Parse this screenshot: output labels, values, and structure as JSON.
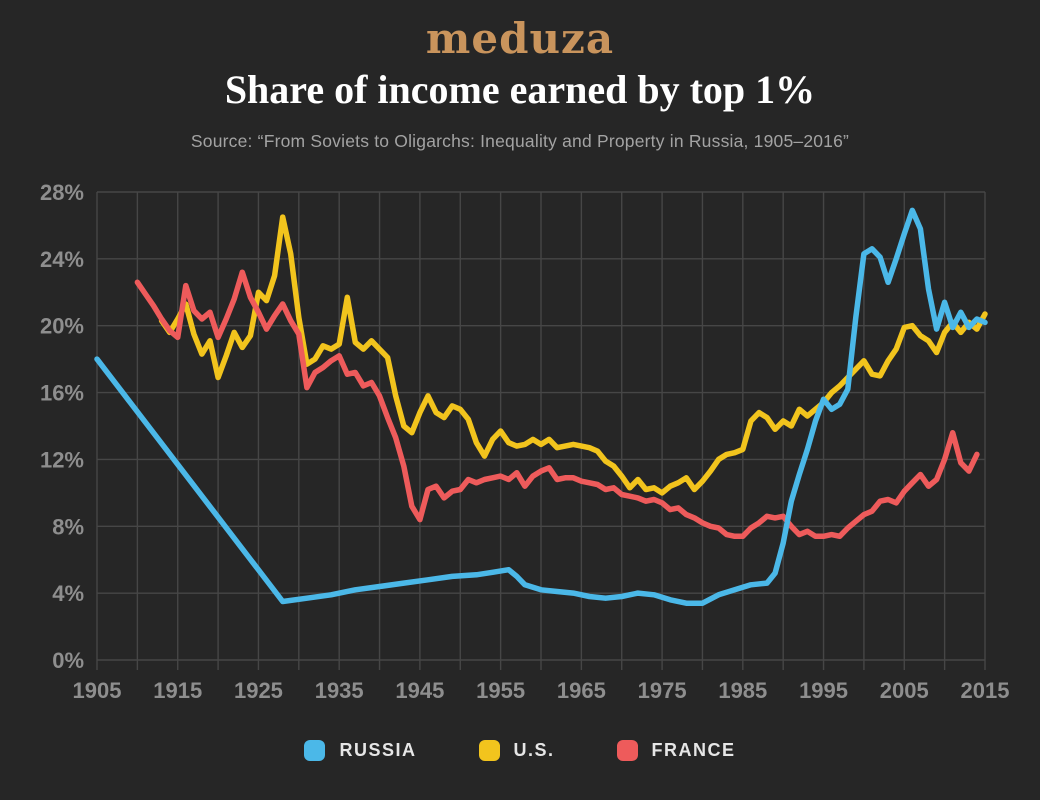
{
  "logo": {
    "text": "meduza",
    "color": "#c9945c"
  },
  "header": {
    "title": "Share of income earned by top 1%",
    "source": "Source: “From Soviets to Oligarchs: Inequality and Property in Russia, 1905–2016”"
  },
  "colors": {
    "background": "#262626",
    "grid": "#464646",
    "axis_text": "#8e8e8e",
    "title": "#ffffff",
    "source": "#a3a3a3"
  },
  "legend": {
    "items": [
      {
        "label": "RUSSIA",
        "color": "#4bb8e8"
      },
      {
        "label": "U.S.",
        "color": "#f2c41d"
      },
      {
        "label": "FRANCE",
        "color": "#ee5b5b"
      }
    ]
  },
  "chart_data": {
    "type": "line",
    "title": "Share of income earned by top 1%",
    "xlabel": "",
    "ylabel": "",
    "x_axis": {
      "min": 1905,
      "max": 2015,
      "grid_interval": 5,
      "label_interval": 10,
      "tick_labels": [
        "1905",
        "1915",
        "1925",
        "1935",
        "1945",
        "1955",
        "1965",
        "1975",
        "1985",
        "1995",
        "2005",
        "2015"
      ]
    },
    "y_axis": {
      "min": 0,
      "max": 28,
      "tick_interval": 4,
      "unit": "%",
      "tick_labels": [
        "0%",
        "4%",
        "8%",
        "12%",
        "16%",
        "20%",
        "24%",
        "28%"
      ]
    },
    "grid": true,
    "legend_position": "bottom",
    "draw_order": [
      1,
      2,
      0
    ],
    "series": [
      {
        "name": "RUSSIA",
        "color": "#4bb8e8",
        "points": [
          [
            1905,
            18.0
          ],
          [
            1928,
            3.5
          ],
          [
            1931,
            3.7
          ],
          [
            1934,
            3.9
          ],
          [
            1937,
            4.2
          ],
          [
            1940,
            4.4
          ],
          [
            1943,
            4.6
          ],
          [
            1946,
            4.8
          ],
          [
            1949,
            5.0
          ],
          [
            1952,
            5.1
          ],
          [
            1954,
            5.25
          ],
          [
            1956,
            5.4
          ],
          [
            1957,
            5.0
          ],
          [
            1958,
            4.5
          ],
          [
            1960,
            4.2
          ],
          [
            1962,
            4.1
          ],
          [
            1964,
            4.0
          ],
          [
            1966,
            3.8
          ],
          [
            1968,
            3.7
          ],
          [
            1970,
            3.8
          ],
          [
            1972,
            4.0
          ],
          [
            1974,
            3.9
          ],
          [
            1976,
            3.6
          ],
          [
            1978,
            3.4
          ],
          [
            1980,
            3.4
          ],
          [
            1982,
            3.9
          ],
          [
            1984,
            4.2
          ],
          [
            1986,
            4.5
          ],
          [
            1988,
            4.6
          ],
          [
            1989,
            5.2
          ],
          [
            1990,
            7.0
          ],
          [
            1991,
            9.5
          ],
          [
            1992,
            11.1
          ],
          [
            1993,
            12.6
          ],
          [
            1994,
            14.3
          ],
          [
            1995,
            15.6
          ],
          [
            1996,
            15.0
          ],
          [
            1997,
            15.3
          ],
          [
            1998,
            16.2
          ],
          [
            1999,
            20.5
          ],
          [
            2000,
            24.3
          ],
          [
            2001,
            24.6
          ],
          [
            2002,
            24.1
          ],
          [
            2003,
            22.6
          ],
          [
            2004,
            24.0
          ],
          [
            2005,
            25.5
          ],
          [
            2006,
            26.9
          ],
          [
            2007,
            25.8
          ],
          [
            2008,
            22.2
          ],
          [
            2009,
            19.8
          ],
          [
            2010,
            21.4
          ],
          [
            2011,
            19.9
          ],
          [
            2012,
            20.8
          ],
          [
            2013,
            19.9
          ],
          [
            2014,
            20.4
          ],
          [
            2015,
            20.2
          ]
        ]
      },
      {
        "name": "U.S.",
        "color": "#f2c41d",
        "points": [
          [
            1913,
            20.3
          ],
          [
            1914,
            19.6
          ],
          [
            1915,
            20.4
          ],
          [
            1916,
            21.3
          ],
          [
            1917,
            19.5
          ],
          [
            1918,
            18.3
          ],
          [
            1919,
            19.1
          ],
          [
            1920,
            16.9
          ],
          [
            1921,
            18.2
          ],
          [
            1922,
            19.6
          ],
          [
            1923,
            18.7
          ],
          [
            1924,
            19.4
          ],
          [
            1925,
            22.0
          ],
          [
            1926,
            21.5
          ],
          [
            1927,
            23.0
          ],
          [
            1928,
            26.5
          ],
          [
            1929,
            24.3
          ],
          [
            1930,
            20.5
          ],
          [
            1931,
            17.7
          ],
          [
            1932,
            18.0
          ],
          [
            1933,
            18.8
          ],
          [
            1934,
            18.6
          ],
          [
            1935,
            18.9
          ],
          [
            1936,
            21.7
          ],
          [
            1937,
            19.0
          ],
          [
            1938,
            18.6
          ],
          [
            1939,
            19.1
          ],
          [
            1940,
            18.6
          ],
          [
            1941,
            18.1
          ],
          [
            1942,
            15.8
          ],
          [
            1943,
            14.0
          ],
          [
            1944,
            13.6
          ],
          [
            1945,
            14.8
          ],
          [
            1946,
            15.8
          ],
          [
            1947,
            14.8
          ],
          [
            1948,
            14.5
          ],
          [
            1949,
            15.2
          ],
          [
            1950,
            15.0
          ],
          [
            1951,
            14.4
          ],
          [
            1952,
            13.0
          ],
          [
            1953,
            12.2
          ],
          [
            1954,
            13.2
          ],
          [
            1955,
            13.7
          ],
          [
            1956,
            13.0
          ],
          [
            1957,
            12.8
          ],
          [
            1958,
            12.9
          ],
          [
            1959,
            13.2
          ],
          [
            1960,
            12.9
          ],
          [
            1961,
            13.2
          ],
          [
            1962,
            12.7
          ],
          [
            1963,
            12.8
          ],
          [
            1964,
            12.9
          ],
          [
            1965,
            12.8
          ],
          [
            1966,
            12.7
          ],
          [
            1967,
            12.5
          ],
          [
            1968,
            11.9
          ],
          [
            1969,
            11.6
          ],
          [
            1970,
            11.0
          ],
          [
            1971,
            10.3
          ],
          [
            1972,
            10.8
          ],
          [
            1973,
            10.2
          ],
          [
            1974,
            10.3
          ],
          [
            1975,
            10.0
          ],
          [
            1976,
            10.4
          ],
          [
            1977,
            10.6
          ],
          [
            1978,
            10.9
          ],
          [
            1979,
            10.2
          ],
          [
            1980,
            10.7
          ],
          [
            1981,
            11.3
          ],
          [
            1982,
            12.0
          ],
          [
            1983,
            12.3
          ],
          [
            1984,
            12.4
          ],
          [
            1985,
            12.6
          ],
          [
            1986,
            14.3
          ],
          [
            1987,
            14.8
          ],
          [
            1988,
            14.5
          ],
          [
            1989,
            13.8
          ],
          [
            1990,
            14.3
          ],
          [
            1991,
            14.0
          ],
          [
            1992,
            15.0
          ],
          [
            1993,
            14.6
          ],
          [
            1994,
            15.0
          ],
          [
            1995,
            15.4
          ],
          [
            1996,
            16.0
          ],
          [
            1997,
            16.4
          ],
          [
            1998,
            16.9
          ],
          [
            1999,
            17.4
          ],
          [
            2000,
            17.9
          ],
          [
            2001,
            17.1
          ],
          [
            2002,
            17.0
          ],
          [
            2003,
            17.9
          ],
          [
            2004,
            18.6
          ],
          [
            2005,
            19.9
          ],
          [
            2006,
            20.0
          ],
          [
            2007,
            19.4
          ],
          [
            2008,
            19.1
          ],
          [
            2009,
            18.4
          ],
          [
            2010,
            19.6
          ],
          [
            2011,
            20.2
          ],
          [
            2012,
            19.6
          ],
          [
            2013,
            20.2
          ],
          [
            2014,
            19.8
          ],
          [
            2015,
            20.7
          ]
        ]
      },
      {
        "name": "FRANCE",
        "color": "#ee5b5b",
        "points": [
          [
            1910,
            22.6
          ],
          [
            1911,
            21.9
          ],
          [
            1912,
            21.2
          ],
          [
            1913,
            20.4
          ],
          [
            1914,
            19.7
          ],
          [
            1915,
            19.3
          ],
          [
            1916,
            22.4
          ],
          [
            1917,
            20.9
          ],
          [
            1918,
            20.4
          ],
          [
            1919,
            20.8
          ],
          [
            1920,
            19.3
          ],
          [
            1921,
            20.4
          ],
          [
            1922,
            21.6
          ],
          [
            1923,
            23.2
          ],
          [
            1924,
            21.7
          ],
          [
            1925,
            20.8
          ],
          [
            1926,
            19.8
          ],
          [
            1927,
            20.6
          ],
          [
            1928,
            21.3
          ],
          [
            1929,
            20.3
          ],
          [
            1930,
            19.5
          ],
          [
            1931,
            16.3
          ],
          [
            1932,
            17.2
          ],
          [
            1933,
            17.5
          ],
          [
            1934,
            17.9
          ],
          [
            1935,
            18.2
          ],
          [
            1936,
            17.1
          ],
          [
            1937,
            17.2
          ],
          [
            1938,
            16.4
          ],
          [
            1939,
            16.6
          ],
          [
            1940,
            15.8
          ],
          [
            1941,
            14.5
          ],
          [
            1942,
            13.3
          ],
          [
            1943,
            11.6
          ],
          [
            1944,
            9.2
          ],
          [
            1945,
            8.4
          ],
          [
            1946,
            10.2
          ],
          [
            1947,
            10.4
          ],
          [
            1948,
            9.7
          ],
          [
            1949,
            10.1
          ],
          [
            1950,
            10.2
          ],
          [
            1951,
            10.8
          ],
          [
            1952,
            10.6
          ],
          [
            1953,
            10.8
          ],
          [
            1954,
            10.9
          ],
          [
            1955,
            11.0
          ],
          [
            1956,
            10.8
          ],
          [
            1957,
            11.2
          ],
          [
            1958,
            10.4
          ],
          [
            1959,
            11.0
          ],
          [
            1960,
            11.3
          ],
          [
            1961,
            11.5
          ],
          [
            1962,
            10.8
          ],
          [
            1963,
            10.9
          ],
          [
            1964,
            10.9
          ],
          [
            1965,
            10.7
          ],
          [
            1966,
            10.6
          ],
          [
            1967,
            10.5
          ],
          [
            1968,
            10.2
          ],
          [
            1969,
            10.3
          ],
          [
            1970,
            9.9
          ],
          [
            1971,
            9.8
          ],
          [
            1972,
            9.7
          ],
          [
            1973,
            9.5
          ],
          [
            1974,
            9.6
          ],
          [
            1975,
            9.4
          ],
          [
            1976,
            9.0
          ],
          [
            1977,
            9.1
          ],
          [
            1978,
            8.7
          ],
          [
            1979,
            8.5
          ],
          [
            1980,
            8.2
          ],
          [
            1981,
            8.0
          ],
          [
            1982,
            7.9
          ],
          [
            1983,
            7.5
          ],
          [
            1984,
            7.4
          ],
          [
            1985,
            7.4
          ],
          [
            1986,
            7.9
          ],
          [
            1987,
            8.2
          ],
          [
            1988,
            8.6
          ],
          [
            1989,
            8.5
          ],
          [
            1990,
            8.6
          ],
          [
            1991,
            8.0
          ],
          [
            1992,
            7.5
          ],
          [
            1993,
            7.7
          ],
          [
            1994,
            7.4
          ],
          [
            1995,
            7.4
          ],
          [
            1996,
            7.5
          ],
          [
            1997,
            7.4
          ],
          [
            1998,
            7.9
          ],
          [
            1999,
            8.3
          ],
          [
            2000,
            8.7
          ],
          [
            2001,
            8.9
          ],
          [
            2002,
            9.5
          ],
          [
            2003,
            9.6
          ],
          [
            2004,
            9.4
          ],
          [
            2005,
            10.1
          ],
          [
            2006,
            10.6
          ],
          [
            2007,
            11.1
          ],
          [
            2008,
            10.4
          ],
          [
            2009,
            10.8
          ],
          [
            2010,
            12.0
          ],
          [
            2011,
            13.6
          ],
          [
            2012,
            11.8
          ],
          [
            2013,
            11.3
          ],
          [
            2014,
            12.3
          ]
        ]
      }
    ]
  }
}
